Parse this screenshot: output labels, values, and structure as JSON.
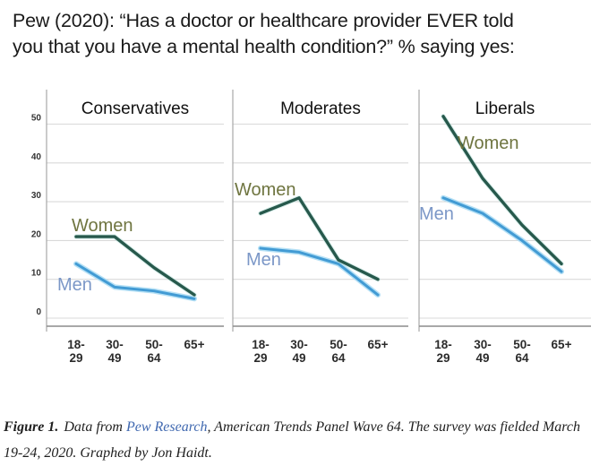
{
  "title": {
    "line1": "Pew (2020): “Has a doctor or healthcare provider EVER told",
    "line2": "you that you have a mental health condition?” % saying yes:"
  },
  "chart_data": {
    "type": "line",
    "categories": [
      "18-29",
      "30-49",
      "50-64",
      "65+"
    ],
    "category_tick_lines": [
      [
        "18-",
        "29"
      ],
      [
        "30-",
        "49"
      ],
      [
        "50-",
        "64"
      ],
      [
        "65+"
      ]
    ],
    "y_ticks": [
      0,
      10,
      20,
      30,
      40,
      50
    ],
    "ylim": [
      -2,
      57
    ],
    "grid": true,
    "legend": "inline-labels",
    "ylabel": "% saying yes",
    "facets": [
      {
        "title": "Conservatives",
        "series": [
          {
            "name": "Women",
            "values": [
              21,
              21,
              13,
              6
            ]
          },
          {
            "name": "Men",
            "values": [
              14,
              8,
              7,
              5
            ]
          }
        ]
      },
      {
        "title": "Moderates",
        "series": [
          {
            "name": "Women",
            "values": [
              27,
              31,
              15,
              10
            ]
          },
          {
            "name": "Men",
            "values": [
              18,
              17,
              14,
              6
            ]
          }
        ]
      },
      {
        "title": "Liberals",
        "series": [
          {
            "name": "Women",
            "values": [
              52,
              36,
              24,
              14
            ]
          },
          {
            "name": "Men",
            "values": [
              31,
              27,
              20,
              12
            ]
          }
        ]
      }
    ]
  },
  "colors": {
    "women_line": "#27594c",
    "women_halo": "#bfe3df",
    "women_label": "#6f7540",
    "men_line": "#429bd4",
    "men_halo": "#a8daf3",
    "men_label": "#7b97c7",
    "grid": "#d9d9d9",
    "axis_line": "#a8a8a8",
    "bottom_axis": "#8c8c8c",
    "facet_title": "#111111",
    "tick_text": "#333333",
    "link": "#4169b0",
    "caption_text": "#1f1f1f"
  },
  "caption": {
    "figure_label": "Figure 1.",
    "before_link": "Data from ",
    "link_text": "Pew Research",
    "after_link": ", American Trends Panel Wave 64. The survey was fielded March 19-24, 2020. Graphed by Jon Haidt."
  }
}
